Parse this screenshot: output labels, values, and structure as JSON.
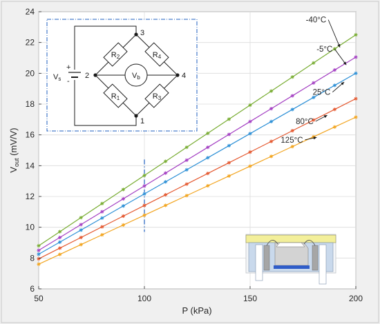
{
  "chart_data": {
    "type": "line",
    "xlabel": "P (kPa)",
    "ylabel_main": "V",
    "ylabel_sub": "out",
    "ylabel_unit": " (mV/V)",
    "xlim": [
      50,
      200
    ],
    "ylim": [
      6,
      24
    ],
    "xticks": [
      "50",
      "100",
      "150",
      "200"
    ],
    "yticks": [
      "6",
      "8",
      "10",
      "12",
      "14",
      "16",
      "18",
      "20",
      "22",
      "24"
    ],
    "grid": true,
    "x": [
      50,
      60,
      70,
      80,
      90,
      100,
      110,
      120,
      130,
      140,
      150,
      160,
      170,
      180,
      190,
      200
    ],
    "reference_line_x": 100,
    "series": [
      {
        "name": "-40°C",
        "color": "#77ac30",
        "start": 8.8,
        "end": 22.5,
        "label_at_x": 186,
        "label_y": 23.3
      },
      {
        "name": "-5°C",
        "color": "#a33ec2",
        "start": 8.5,
        "end": 21.05,
        "label_at_x": 189,
        "label_y": 21.4
      },
      {
        "name": "25°C",
        "color": "#2b8fd6",
        "start": 8.25,
        "end": 20.0,
        "label_at_x": 188,
        "label_y": 18.6
      },
      {
        "name": "80°C",
        "color": "#e4572e",
        "start": 7.95,
        "end": 18.35,
        "label_at_x": 180,
        "label_y": 16.7
      },
      {
        "name": "125°C",
        "color": "#f2a31b",
        "start": 7.6,
        "end": 17.15,
        "label_at_x": 175,
        "label_y": 15.5
      }
    ]
  },
  "inset_circuit": {
    "source_label": "V",
    "source_sub": "s",
    "plus": "+",
    "minus": "-",
    "meter_label": "V",
    "meter_sub": "b",
    "nodes": [
      "1",
      "2",
      "3",
      "4"
    ],
    "resistors": [
      {
        "label": "R",
        "sub": "1"
      },
      {
        "label": "R",
        "sub": "2"
      },
      {
        "label": "R",
        "sub": "3"
      },
      {
        "label": "R",
        "sub": "4"
      }
    ]
  }
}
